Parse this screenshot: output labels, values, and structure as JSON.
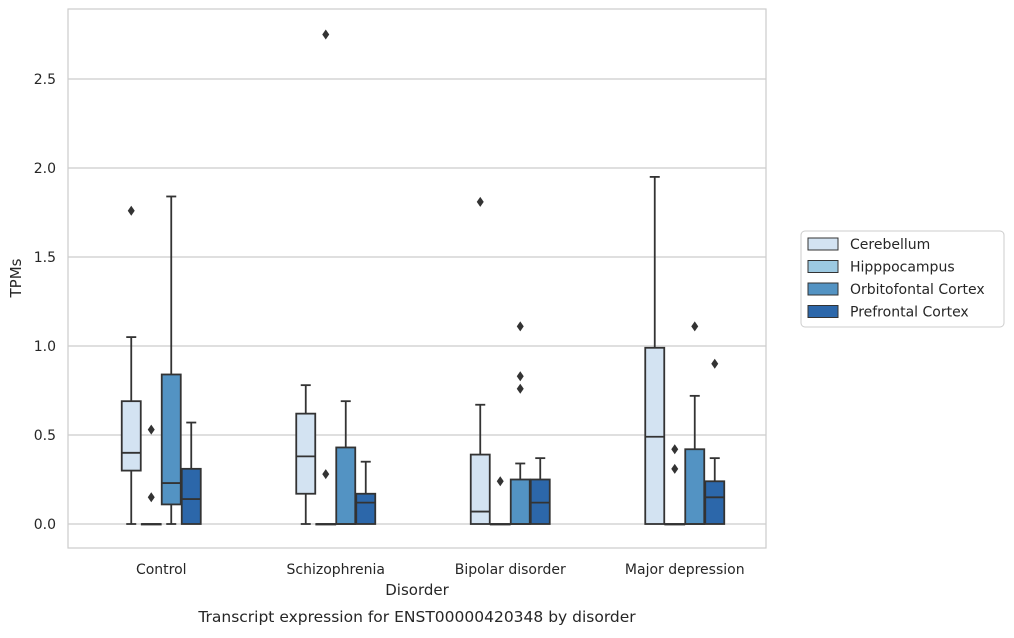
{
  "chart_data": {
    "type": "box",
    "title": "",
    "caption": "Transcript expression for ENST00000420348 by disorder",
    "xlabel": "Disorder",
    "ylabel": "TPMs",
    "ylim": [
      -0.13,
      2.9
    ],
    "yticks": [
      "0.0",
      "0.5",
      "1.0",
      "1.5",
      "2.0",
      "2.5"
    ],
    "ytick_values": [
      0,
      0.5,
      1.0,
      1.5,
      2.0,
      2.5
    ],
    "grid": "horizontal",
    "legend_position": "right",
    "categories": [
      "Control",
      "Schizophrenia",
      "Bipolar disorder",
      "Major depression"
    ],
    "series": [
      {
        "name": "Cerebellum",
        "color": "#d3e3f2",
        "boxes": [
          {
            "whislo": 0.0,
            "q1": 0.3,
            "med": 0.4,
            "q3": 0.69,
            "whishi": 1.05,
            "fliers": [
              1.76
            ]
          },
          {
            "whislo": 0.0,
            "q1": 0.17,
            "med": 0.38,
            "q3": 0.62,
            "whishi": 0.78,
            "fliers": []
          },
          {
            "whislo": 0.0,
            "q1": 0.0,
            "med": 0.07,
            "q3": 0.39,
            "whishi": 0.67,
            "fliers": [
              1.81
            ]
          },
          {
            "whislo": 0.0,
            "q1": 0.0,
            "med": 0.49,
            "q3": 0.99,
            "whishi": 1.95,
            "fliers": []
          }
        ]
      },
      {
        "name": "Hipppocampus",
        "color": "#9cc9e1",
        "boxes": [
          {
            "whislo": 0.0,
            "q1": 0.0,
            "med": 0.0,
            "q3": 0.0,
            "whishi": 0.0,
            "fliers": [
              0.53,
              0.15
            ]
          },
          {
            "whislo": 0.0,
            "q1": 0.0,
            "med": 0.0,
            "q3": 0.0,
            "whishi": 0.0,
            "fliers": [
              0.28,
              2.75
            ]
          },
          {
            "whislo": 0.0,
            "q1": 0.0,
            "med": 0.0,
            "q3": 0.0,
            "whishi": 0.0,
            "fliers": [
              0.24
            ]
          },
          {
            "whislo": 0.0,
            "q1": 0.0,
            "med": 0.0,
            "q3": 0.0,
            "whishi": 0.0,
            "fliers": [
              0.42,
              0.31
            ]
          }
        ]
      },
      {
        "name": "Orbitofontal Cortex",
        "color": "#5393c3",
        "boxes": [
          {
            "whislo": 0.0,
            "q1": 0.11,
            "med": 0.23,
            "q3": 0.84,
            "whishi": 1.84,
            "fliers": []
          },
          {
            "whislo": 0.0,
            "q1": 0.0,
            "med": 0.0,
            "q3": 0.43,
            "whishi": 0.69,
            "fliers": []
          },
          {
            "whislo": 0.0,
            "q1": 0.0,
            "med": 0.0,
            "q3": 0.25,
            "whishi": 0.34,
            "fliers": [
              1.11,
              0.83,
              0.76
            ]
          },
          {
            "whislo": 0.0,
            "q1": 0.0,
            "med": 0.0,
            "q3": 0.42,
            "whishi": 0.72,
            "fliers": [
              1.11
            ]
          }
        ]
      },
      {
        "name": "Prefrontal Cortex",
        "color": "#2c67aa",
        "boxes": [
          {
            "whislo": 0.0,
            "q1": 0.0,
            "med": 0.14,
            "q3": 0.31,
            "whishi": 0.57,
            "fliers": []
          },
          {
            "whislo": 0.0,
            "q1": 0.0,
            "med": 0.12,
            "q3": 0.17,
            "whishi": 0.35,
            "fliers": []
          },
          {
            "whislo": 0.0,
            "q1": 0.0,
            "med": 0.12,
            "q3": 0.25,
            "whishi": 0.37,
            "fliers": []
          },
          {
            "whislo": 0.0,
            "q1": 0.0,
            "med": 0.15,
            "q3": 0.24,
            "whishi": 0.37,
            "fliers": [
              0.9
            ]
          }
        ]
      }
    ]
  }
}
